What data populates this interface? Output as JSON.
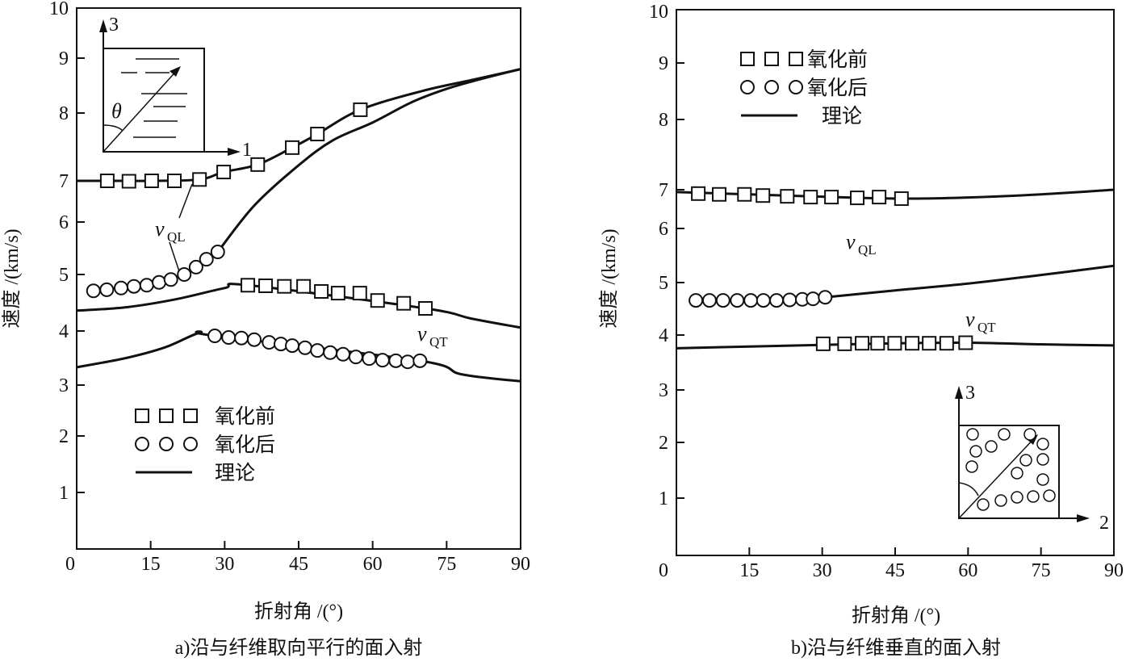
{
  "chart_data": [
    {
      "type": "line",
      "caption": "a)沿与纤维取向平行的面入射",
      "xlabel": "折射角 /(°)",
      "ylabel": "速度 /(km/s)",
      "xlim": [
        0,
        90
      ],
      "ylim": [
        0,
        10
      ],
      "xticks": [
        "0",
        "15",
        "30",
        "45",
        "60",
        "75",
        "90"
      ],
      "yticks": [
        "0",
        "1",
        "2",
        "3",
        "4",
        "5",
        "6",
        "7",
        "8",
        "9",
        "10"
      ],
      "legend": {
        "position": "bottom-left",
        "entries": [
          "氧化前",
          "氧化后",
          "理论"
        ]
      },
      "annotations": {
        "vql": "v",
        "vql_sub": "QL",
        "vqt": "v",
        "vqt_sub": "QT"
      },
      "inset": {
        "axis_up": "3",
        "axis_right": "1",
        "angle": "θ"
      },
      "series": [
        {
          "name": "氧化前 v_QL",
          "marker": "square",
          "x": [
            6.2,
            10.6,
            15.2,
            19.8,
            24.9,
            29.8,
            36.7,
            43.7,
            48.8,
            57.5
          ],
          "y": [
            7.0,
            6.99,
            7.0,
            7.0,
            7.02,
            7.13,
            7.24,
            7.49,
            7.69,
            8.06
          ]
        },
        {
          "name": "理论 v_QL 氧化前",
          "marker": "line",
          "x": [
            0,
            6.2,
            15.2,
            24.9,
            29.8,
            36.7,
            43.7,
            48.8,
            57.5,
            70,
            80,
            90
          ],
          "y": [
            7.0,
            7.0,
            7.0,
            7.02,
            7.13,
            7.24,
            7.49,
            7.69,
            8.06,
            8.4,
            8.6,
            8.8
          ]
        },
        {
          "name": "氧化后 v_QL",
          "marker": "circle",
          "x": [
            3.4,
            6.1,
            9.0,
            11.6,
            14.2,
            16.7,
            19.1,
            21.8,
            24.2,
            26.3,
            28.6
          ],
          "y": [
            4.71,
            4.73,
            4.76,
            4.79,
            4.81,
            4.86,
            4.91,
            5.0,
            5.14,
            5.29,
            5.43
          ]
        },
        {
          "name": "理论 v_QL 氧化后",
          "marker": "line",
          "x": [
            28.6,
            36,
            45,
            52,
            60,
            68,
            75,
            82,
            90
          ],
          "y": [
            5.43,
            6.4,
            7.23,
            7.6,
            7.86,
            8.2,
            8.44,
            8.62,
            8.8
          ]
        },
        {
          "name": "氧化前 v_QT",
          "marker": "square",
          "x": [
            34.7,
            38.3,
            42.1,
            46.0,
            49.6,
            53.0,
            57.4,
            61.0,
            66.3,
            70.7
          ],
          "y": [
            4.81,
            4.8,
            4.79,
            4.79,
            4.7,
            4.67,
            4.67,
            4.54,
            4.49,
            4.4
          ]
        },
        {
          "name": "理论 v_QT 氧化前",
          "marker": "line",
          "x": [
            0,
            10,
            20,
            30,
            34.7,
            70.7,
            80,
            90
          ],
          "y": [
            4.36,
            4.42,
            4.56,
            4.76,
            4.81,
            4.4,
            4.22,
            4.06
          ]
        },
        {
          "name": "氧化后 v_QT",
          "marker": "circle",
          "x": [
            28.0,
            30.8,
            33.4,
            36.0,
            39.0,
            41.4,
            43.7,
            46.3,
            48.8,
            51.4,
            54.0,
            56.6,
            59.3,
            62.0,
            64.7,
            67.1,
            69.6
          ],
          "y": [
            3.91,
            3.88,
            3.87,
            3.84,
            3.79,
            3.76,
            3.73,
            3.69,
            3.64,
            3.6,
            3.57,
            3.52,
            3.49,
            3.46,
            3.45,
            3.43,
            3.45
          ]
        },
        {
          "name": "理论 v_QT 氧化后",
          "marker": "line",
          "x": [
            0,
            10,
            18,
            25,
            28.0,
            69.6,
            78,
            90
          ],
          "y": [
            3.33,
            3.5,
            3.7,
            3.97,
            3.91,
            3.45,
            3.2,
            3.07
          ]
        }
      ]
    },
    {
      "type": "line",
      "caption": "b)沿与纤维垂直的面入射",
      "xlabel": "折射角 /(°)",
      "ylabel": "速度 /(km/s)",
      "xlim": [
        0,
        90
      ],
      "ylim": [
        0,
        10
      ],
      "xticks": [
        "0",
        "15",
        "30",
        "45",
        "60",
        "75",
        "90"
      ],
      "yticks": [
        "0",
        "1",
        "2",
        "3",
        "4",
        "5",
        "6",
        "7",
        "8",
        "9",
        "10"
      ],
      "legend": {
        "position": "top-left",
        "entries": [
          "氧化前",
          "氧化后",
          "理论"
        ]
      },
      "annotations": {
        "vql": "v",
        "vql_sub": "QL",
        "vqt": "v",
        "vqt_sub": "QT"
      },
      "inset": {
        "axis_up": "3",
        "axis_right": "2"
      },
      "series": [
        {
          "name": "氧化前 v_QL",
          "marker": "square",
          "x": [
            4.5,
            8.8,
            14.0,
            17.8,
            22.8,
            27.6,
            31.9,
            37.2,
            41.7,
            46.3
          ],
          "y": [
            6.9,
            6.88,
            6.88,
            6.85,
            6.83,
            6.81,
            6.81,
            6.79,
            6.81,
            6.77
          ]
        },
        {
          "name": "理论 v_QL 氧化前",
          "marker": "line",
          "x": [
            0,
            15,
            30,
            46.3,
            60,
            75,
            90
          ],
          "y": [
            6.94,
            6.88,
            6.82,
            6.77,
            6.8,
            6.88,
            7.0
          ]
        },
        {
          "name": "氧化后 v_QL",
          "marker": "circle",
          "x": [
            4.0,
            6.8,
            9.6,
            12.5,
            15.3,
            17.9,
            20.6,
            23.3,
            25.9,
            28.1,
            30.6
          ],
          "y": [
            4.66,
            4.66,
            4.66,
            4.66,
            4.66,
            4.66,
            4.66,
            4.67,
            4.68,
            4.69,
            4.72
          ]
        },
        {
          "name": "理论 v_QL 氧化后",
          "marker": "line",
          "x": [
            30.6,
            45,
            60,
            75,
            90
          ],
          "y": [
            4.72,
            4.85,
            4.98,
            5.14,
            5.31
          ]
        },
        {
          "name": "氧化前 v_QT",
          "marker": "square",
          "x": [
            30.2,
            34.6,
            38.2,
            41.4,
            44.9,
            48.5,
            52.0,
            55.6,
            59.5
          ],
          "y": [
            3.84,
            3.84,
            3.85,
            3.85,
            3.85,
            3.85,
            3.85,
            3.85,
            3.86
          ]
        },
        {
          "name": "理论 v_QT",
          "marker": "line",
          "x": [
            0,
            15,
            30,
            45,
            60,
            75,
            90
          ],
          "y": [
            3.76,
            3.79,
            3.82,
            3.85,
            3.86,
            3.83,
            3.81
          ]
        }
      ]
    }
  ]
}
